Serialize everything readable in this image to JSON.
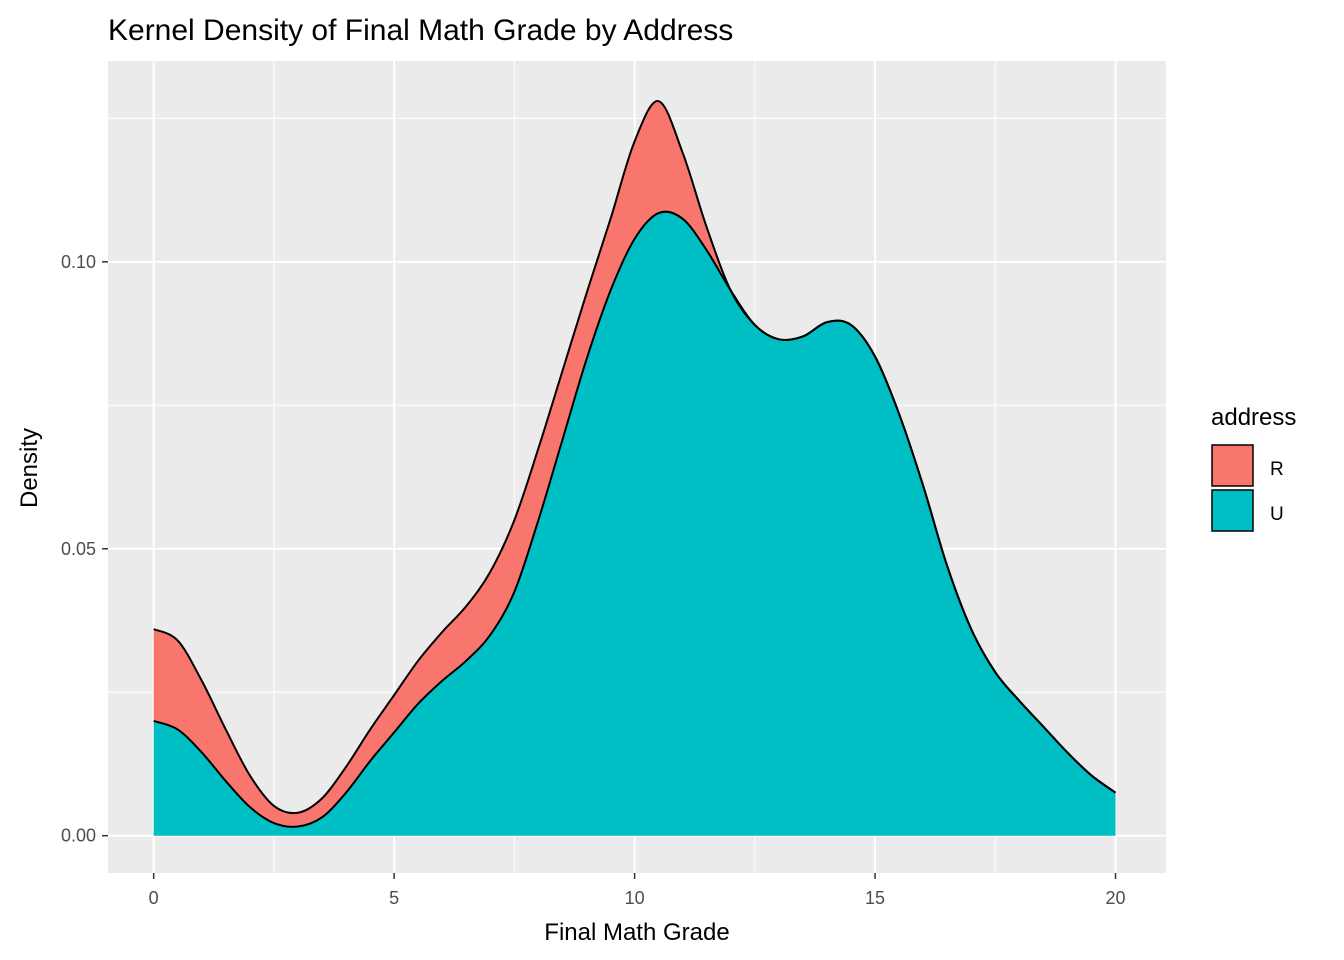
{
  "chart_data": {
    "type": "area",
    "stacked": true,
    "title": "Kernel Density of Final Math Grade by Address",
    "xlabel": "Final Math Grade",
    "ylabel": "Density",
    "xlim": [
      -0.95,
      21.05
    ],
    "ylim": [
      -0.0065,
      0.135
    ],
    "x_ticks": [
      0,
      5,
      10,
      15,
      20
    ],
    "x_tick_labels": [
      "0",
      "5",
      "10",
      "15",
      "20"
    ],
    "y_ticks": [
      0.0,
      0.05,
      0.1
    ],
    "y_tick_labels": [
      "0.00",
      "0.05",
      "0.10"
    ],
    "grid": true,
    "legend": {
      "title": "address",
      "position": "right"
    },
    "colors": {
      "R": "#F8766D",
      "U": "#00BFC4",
      "panel": "#EBEBEB",
      "grid": "#FFFFFF",
      "outline": "#000000"
    },
    "series": [
      {
        "name": "U",
        "x": [
          0,
          0.5,
          1,
          1.5,
          2,
          2.5,
          3,
          3.5,
          4,
          4.5,
          5,
          5.5,
          6,
          6.5,
          7,
          7.5,
          8,
          8.5,
          9,
          9.5,
          10,
          10.5,
          11,
          11.5,
          12,
          12.5,
          13,
          13.5,
          14,
          14.5,
          15,
          15.5,
          16,
          16.5,
          17,
          17.5,
          18,
          18.5,
          19,
          19.5,
          20
        ],
        "y": [
          0.02,
          0.0185,
          0.0145,
          0.0095,
          0.005,
          0.0022,
          0.0016,
          0.0032,
          0.0075,
          0.013,
          0.018,
          0.023,
          0.027,
          0.0305,
          0.035,
          0.0425,
          0.055,
          0.069,
          0.083,
          0.095,
          0.104,
          0.1085,
          0.1075,
          0.102,
          0.095,
          0.089,
          0.0865,
          0.087,
          0.0895,
          0.089,
          0.0835,
          0.0735,
          0.061,
          0.047,
          0.036,
          0.0285,
          0.0235,
          0.019,
          0.0145,
          0.0105,
          0.0075
        ]
      },
      {
        "name": "R",
        "x": [
          0,
          0.5,
          1,
          1.5,
          2,
          2.5,
          3,
          3.5,
          4,
          4.5,
          5,
          5.5,
          6,
          6.5,
          7,
          7.5,
          8,
          8.5,
          9,
          9.5,
          10,
          10.5,
          11,
          11.5,
          12,
          12.5,
          13,
          13.5,
          14,
          14.5,
          15,
          15.5,
          16,
          16.5,
          17,
          17.5,
          18,
          18.5,
          19,
          19.5,
          20
        ],
        "y": [
          0.016,
          0.0155,
          0.0125,
          0.009,
          0.0055,
          0.003,
          0.0024,
          0.0033,
          0.0045,
          0.0055,
          0.0065,
          0.0075,
          0.0085,
          0.0095,
          0.011,
          0.0125,
          0.0125,
          0.012,
          0.0115,
          0.0125,
          0.017,
          0.0195,
          0.0115,
          0.004,
          0,
          0,
          0,
          0,
          0,
          0,
          0,
          0,
          0,
          0,
          0,
          0,
          0,
          0,
          0,
          0,
          0
        ]
      }
    ]
  }
}
